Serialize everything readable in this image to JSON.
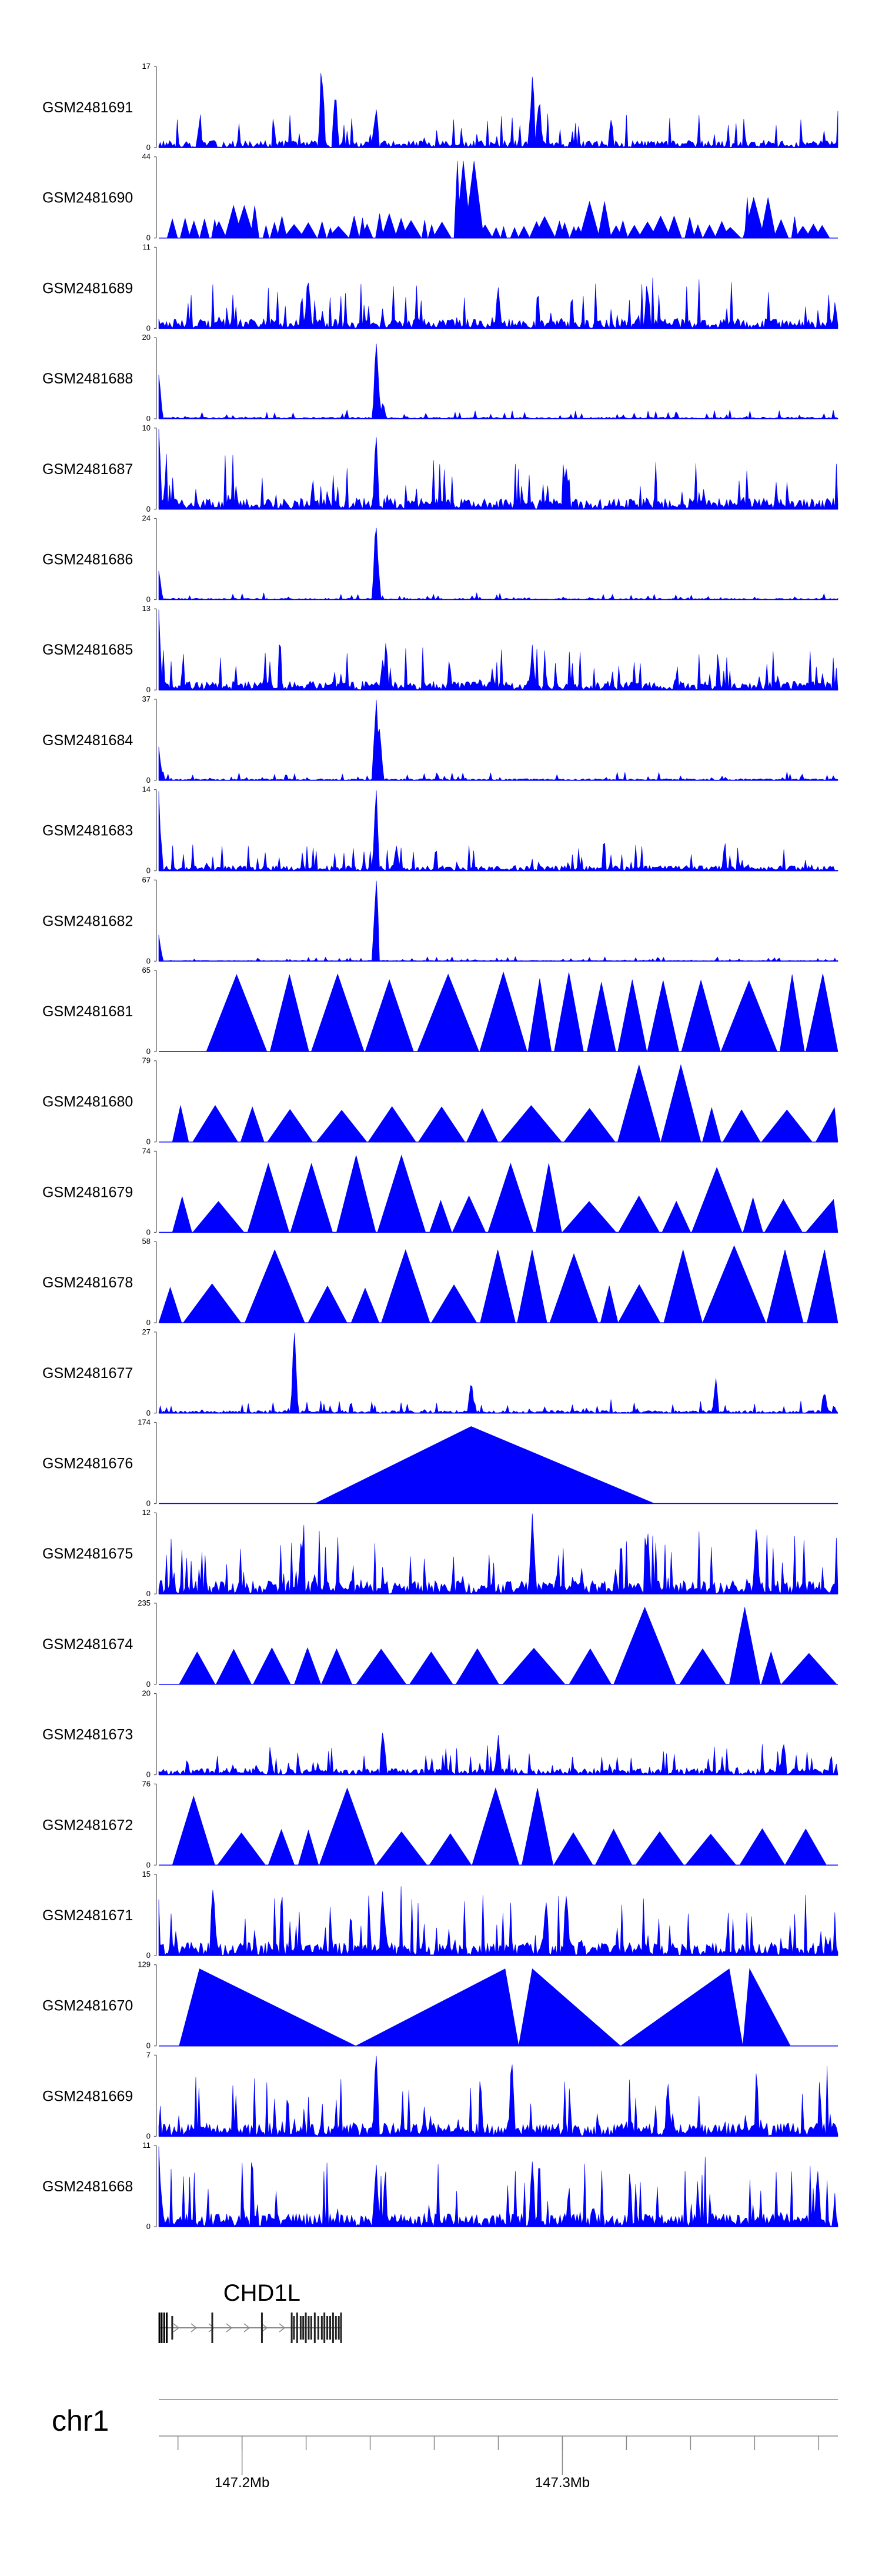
{
  "chart_data": {
    "type": "genome-browser",
    "chromosome": "chr1",
    "xlim": [
      147168000,
      147380000
    ],
    "signal_color": "#0000ff",
    "tracks": [
      {
        "name": "GSM2481691",
        "ymax": "17",
        "ymin": "0",
        "style": "dense",
        "noise": 0.16,
        "peaks": [
          [
            0.24,
            0.95
          ],
          [
            0.26,
            0.6
          ],
          [
            0.32,
            0.5
          ],
          [
            0.55,
            0.85
          ],
          [
            0.56,
            0.6
          ],
          [
            0.06,
            0.25
          ]
        ]
      },
      {
        "name": "GSM2481690",
        "ymax": "44",
        "ymin": "0",
        "style": "sparse",
        "base": 0.25,
        "peaks": [
          [
            0.45,
            0.95
          ],
          [
            0.65,
            0.45
          ],
          [
            0.13,
            0.4
          ],
          [
            0.33,
            0.3
          ],
          [
            0.88,
            0.5
          ]
        ]
      },
      {
        "name": "GSM2481689",
        "ymax": "11",
        "ymin": "0",
        "style": "dense",
        "noise": 0.22,
        "peaks": [
          [
            0.22,
            0.55
          ],
          [
            0.5,
            0.5
          ],
          [
            0.72,
            0.45
          ]
        ]
      },
      {
        "name": "GSM2481688",
        "ymax": "20",
        "ymin": "0",
        "style": "dense",
        "noise": 0.04,
        "peaks": [
          [
            0.0,
            0.5
          ],
          [
            0.32,
            0.95
          ],
          [
            0.322,
            0.6
          ],
          [
            0.33,
            0.2
          ]
        ]
      },
      {
        "name": "GSM2481687",
        "ymax": "10",
        "ymin": "0",
        "style": "dense",
        "noise": 0.25,
        "peaks": [
          [
            0.32,
            0.95
          ],
          [
            0.0,
            0.9
          ],
          [
            0.6,
            0.5
          ]
        ]
      },
      {
        "name": "GSM2481686",
        "ymax": "24",
        "ymin": "0",
        "style": "dense",
        "noise": 0.03,
        "peaks": [
          [
            0.32,
            0.95
          ],
          [
            0.322,
            0.5
          ],
          [
            0.0,
            0.3
          ]
        ]
      },
      {
        "name": "GSM2481685",
        "ymax": "13",
        "ymin": "0",
        "style": "dense",
        "noise": 0.2,
        "peaks": [
          [
            0.0,
            0.95
          ],
          [
            0.33,
            0.4
          ],
          [
            0.55,
            0.5
          ]
        ]
      },
      {
        "name": "GSM2481684",
        "ymax": "37",
        "ymin": "0",
        "style": "dense",
        "noise": 0.04,
        "peaks": [
          [
            0.32,
            0.95
          ],
          [
            0.325,
            0.55
          ],
          [
            0.0,
            0.4
          ]
        ]
      },
      {
        "name": "GSM2481683",
        "ymax": "14",
        "ymin": "0",
        "style": "dense",
        "noise": 0.12,
        "peaks": [
          [
            0.32,
            0.95
          ],
          [
            0.0,
            0.9
          ],
          [
            0.35,
            0.3
          ]
        ]
      },
      {
        "name": "GSM2481682",
        "ymax": "67",
        "ymin": "0",
        "style": "dense",
        "noise": 0.02,
        "peaks": [
          [
            0.32,
            0.95
          ],
          [
            0.0,
            0.3
          ]
        ]
      },
      {
        "name": "GSM2481681",
        "ymax": "65",
        "ymin": "0",
        "style": "tri",
        "base": 1.0,
        "starts": 0.07,
        "peaks": [
          [
            0.14,
            0.95
          ],
          [
            0.19,
            0.95
          ],
          [
            0.24,
            0.95
          ],
          [
            0.42,
            0.95
          ],
          [
            0.6,
            0.95
          ],
          [
            0.93,
            0.95
          ],
          [
            1.0,
            0.95
          ]
        ]
      },
      {
        "name": "GSM2481680",
        "ymax": "79",
        "ymin": "0",
        "style": "tri",
        "base": 0.45,
        "starts": 0.02,
        "peaks": [
          [
            0.74,
            0.95
          ],
          [
            0.05,
            0.45
          ],
          [
            0.52,
            0.45
          ]
        ]
      },
      {
        "name": "GSM2481679",
        "ymax": "74",
        "ymin": "0",
        "style": "tri",
        "base": 0.45,
        "starts": 0.02,
        "peaks": [
          [
            0.2,
            0.85
          ],
          [
            0.32,
            0.95
          ],
          [
            0.55,
            0.85
          ],
          [
            0.85,
            0.8
          ],
          [
            0.7,
            0.45
          ]
        ]
      },
      {
        "name": "GSM2481678",
        "ymax": "58",
        "ymin": "0",
        "style": "tri",
        "base": 0.5,
        "starts": 0.0,
        "peaks": [
          [
            0.19,
            0.9
          ],
          [
            0.34,
            0.9
          ],
          [
            0.5,
            0.9
          ],
          [
            0.54,
            0.9
          ],
          [
            0.58,
            0.85
          ],
          [
            0.8,
            0.9
          ],
          [
            0.85,
            0.95
          ],
          [
            0.95,
            0.9
          ]
        ]
      },
      {
        "name": "GSM2481677",
        "ymax": "27",
        "ymin": "0",
        "style": "dense",
        "noise": 0.06,
        "peaks": [
          [
            0.2,
            0.95
          ],
          [
            0.46,
            0.35
          ],
          [
            0.46,
            0.35
          ],
          [
            0.82,
            0.4
          ],
          [
            0.98,
            0.25
          ]
        ]
      },
      {
        "name": "GSM2481676",
        "ymax": "174",
        "ymin": "0",
        "style": "bigtri",
        "peaks": [
          [
            0.23,
            0.0
          ],
          [
            0.46,
            0.95
          ],
          [
            0.73,
            0.0
          ]
        ]
      },
      {
        "name": "GSM2481675",
        "ymax": "12",
        "ymin": "0",
        "style": "dense",
        "noise": 0.3,
        "peaks": [
          [
            0.55,
            0.95
          ],
          [
            0.21,
            0.7
          ],
          [
            0.72,
            0.7
          ],
          [
            0.88,
            0.75
          ]
        ]
      },
      {
        "name": "GSM2481674",
        "ymax": "235",
        "ymin": "0",
        "style": "tri",
        "base": 0.45,
        "starts": 0.03,
        "peaks": [
          [
            0.68,
            0.95
          ],
          [
            0.72,
            0.95
          ],
          [
            0.86,
            0.95
          ],
          [
            0.2,
            0.45
          ]
        ]
      },
      {
        "name": "GSM2481673",
        "ymax": "20",
        "ymin": "0",
        "style": "dense",
        "noise": 0.15,
        "peaks": [
          [
            0.33,
            0.55
          ],
          [
            0.5,
            0.4
          ],
          [
            0.92,
            0.4
          ]
        ]
      },
      {
        "name": "GSM2481672",
        "ymax": "76",
        "ymin": "0",
        "style": "tri",
        "base": 0.45,
        "starts": 0.02,
        "peaks": [
          [
            0.05,
            0.85
          ],
          [
            0.28,
            0.95
          ],
          [
            0.5,
            0.65
          ],
          [
            0.53,
            0.95
          ],
          [
            0.89,
            0.45
          ]
        ]
      },
      {
        "name": "GSM2481671",
        "ymax": "15",
        "ymin": "0",
        "style": "dense",
        "noise": 0.3,
        "peaks": [
          [
            0.08,
            0.8
          ],
          [
            0.33,
            0.75
          ],
          [
            0.57,
            0.7
          ],
          [
            0.6,
            0.7
          ]
        ]
      },
      {
        "name": "GSM2481670",
        "ymax": "129",
        "ymin": "0",
        "style": "bigtri",
        "peaks": [
          [
            0.03,
            0.0
          ],
          [
            0.06,
            0.95
          ],
          [
            0.29,
            0.0
          ],
          [
            0.51,
            0.95
          ],
          [
            0.53,
            0.0
          ],
          [
            0.55,
            0.95
          ],
          [
            0.68,
            0.0
          ],
          [
            0.84,
            0.95
          ],
          [
            0.86,
            0.0
          ],
          [
            0.87,
            0.95
          ],
          [
            0.93,
            0.0
          ]
        ]
      },
      {
        "name": "GSM2481669",
        "ymax": "7",
        "ymin": "0",
        "style": "dense",
        "noise": 0.3,
        "peaks": [
          [
            0.32,
            0.95
          ],
          [
            0.52,
            0.8
          ],
          [
            0.75,
            0.6
          ]
        ]
      },
      {
        "name": "GSM2481668",
        "ymax": "11",
        "ymin": "0",
        "style": "dense",
        "noise": 0.3,
        "peaks": [
          [
            0.0,
            0.95
          ],
          [
            0.32,
            0.7
          ],
          [
            0.55,
            0.7
          ],
          [
            0.97,
            0.7
          ]
        ]
      }
    ],
    "gene": {
      "name": "CHD1L",
      "start": 147168000,
      "end": 147225000,
      "exons": [
        147168200,
        147168900,
        147169700,
        147170500,
        147172200,
        147184700,
        147200200,
        147209500,
        147210200,
        147211200,
        147212300,
        147213100,
        147213900,
        147214800,
        147215600,
        147216700,
        147217800,
        147218900,
        147219700,
        147220600,
        147221500,
        147222400,
        147223300,
        147224200,
        147224900
      ]
    },
    "x_ticks": [
      147174000,
      147194000,
      147214000,
      147234000,
      147254000,
      147274000,
      147294000,
      147314000,
      147334000,
      147354000,
      147374000
    ],
    "x_tick_labels": [
      {
        "pos": 147194000,
        "text": "147.2Mb"
      },
      {
        "pos": 147294000,
        "text": "147.3Mb"
      }
    ]
  }
}
